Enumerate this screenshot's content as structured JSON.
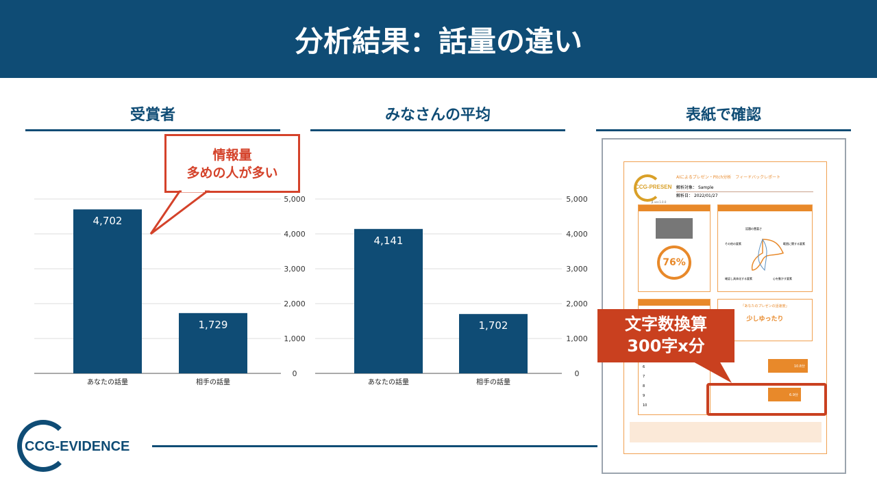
{
  "slide": {
    "title": "分析結果：話量の違い"
  },
  "sections": [
    {
      "title": "受賞者"
    },
    {
      "title": "みなさんの平均"
    },
    {
      "title": "表紙で確認"
    }
  ],
  "callouts": {
    "left": [
      "情報量",
      "多めの人が多い"
    ],
    "right": [
      "文字数換算",
      "300字x分"
    ]
  },
  "chart_data": [
    {
      "type": "bar",
      "title": "受賞者",
      "categories": [
        "あなたの話量",
        "相手の話量"
      ],
      "values": [
        4702,
        1729
      ],
      "data_labels": [
        "4,702",
        "1,729"
      ],
      "ylim": [
        0,
        5000
      ],
      "yticks": [
        "0",
        "1,000",
        "2,000",
        "3,000",
        "4,000",
        "5,000"
      ],
      "grid": true,
      "axis_position": "right",
      "color": "#0f4c75"
    },
    {
      "type": "bar",
      "title": "みなさんの平均",
      "categories": [
        "あなたの話量",
        "相手の話量"
      ],
      "values": [
        4141,
        1702
      ],
      "data_labels": [
        "4,141",
        "1,702"
      ],
      "ylim": [
        0,
        5000
      ],
      "yticks": [
        "0",
        "1,000",
        "2,000",
        "3,000",
        "4,000",
        "5,000"
      ],
      "grid": true,
      "axis_position": "right",
      "color": "#0f4c75"
    }
  ],
  "document": {
    "logo": "CCG-PRESEN",
    "version": "β ver.1.0.0",
    "heading": "AIによるプレゼン・Pitch分析　フィードバックレポート",
    "target_label": "解析対象：",
    "target_value": "Sample",
    "date_label": "解析日：",
    "date_value": "2022/01/27",
    "score": "76%",
    "balance_labels": [
      "話題の豊富さ",
      "範囲に関する要素",
      "心を動かす要素",
      "確認し具体化する要素",
      "その他の要素"
    ],
    "speed_title": "「あなたのプレゼンの話速度」",
    "speed_value": "少しゆったり",
    "ranking_numbers": [
      "6",
      "7",
      "8",
      "9",
      "10"
    ],
    "bar_values": [
      "10.8分",
      "6.9分"
    ]
  },
  "footer": {
    "logo": "CCG-EVIDENCE"
  },
  "colors": {
    "brand": "#0f4c75",
    "accent": "#d4422a",
    "doc_orange": "#e8892a"
  }
}
